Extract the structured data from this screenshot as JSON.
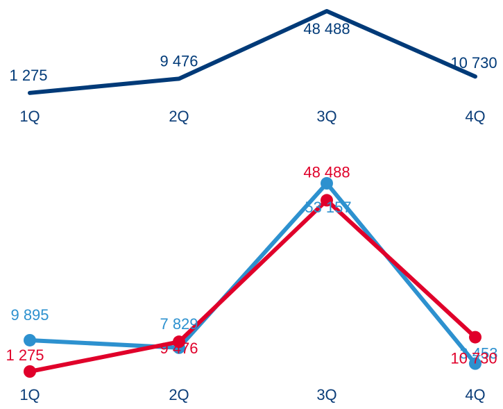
{
  "chart_data": [
    {
      "type": "line",
      "categories": [
        "1Q",
        "2Q",
        "3Q",
        "4Q"
      ],
      "series": [
        {
          "values": [
            1275,
            9476,
            48488,
            10730
          ],
          "labels": [
            "1 275",
            "9 476",
            "48 488",
            "10 730"
          ],
          "color": "#003a78",
          "markers": false
        }
      ],
      "ylim": [
        0,
        48488
      ]
    },
    {
      "type": "line",
      "categories": [
        "1Q",
        "2Q",
        "3Q",
        "4Q"
      ],
      "series": [
        {
          "values": [
            9895,
            7829,
            53157,
            3453
          ],
          "labels": [
            "9 895",
            "7 829",
            "53 157",
            "3 453"
          ],
          "color": "#2d91cf",
          "markers": true
        },
        {
          "values": [
            1275,
            9476,
            48488,
            10730
          ],
          "labels": [
            "1 275",
            "9 476",
            "48 488",
            "10 730"
          ],
          "color": "#e0002a",
          "markers": true
        }
      ],
      "ylim": [
        1275,
        53157
      ]
    }
  ],
  "colors": {
    "axis_text": "#0b3d78"
  }
}
